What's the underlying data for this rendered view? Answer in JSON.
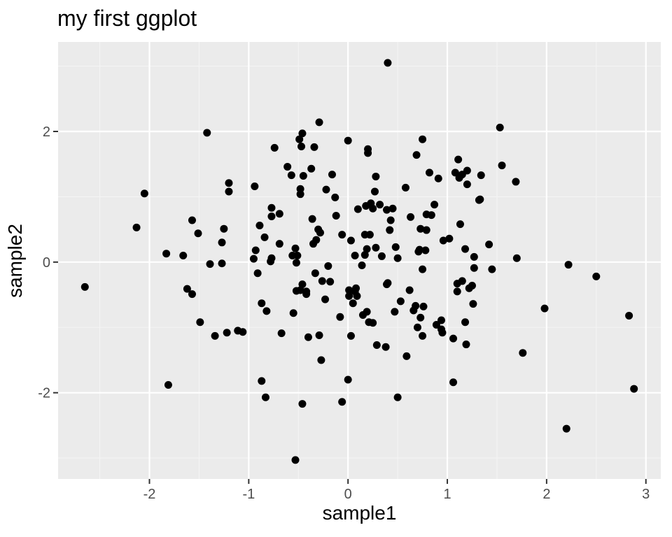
{
  "colors": {
    "panel_background": "#EBEBEB",
    "grid_major": "#FFFFFF",
    "grid_minor": "#F4F4F4",
    "point": "#000000",
    "tick_text": "#4D4D4D",
    "tick_mark": "#333333"
  },
  "chart_data": {
    "type": "scatter",
    "title": "my first ggplot",
    "xlabel": "sample1",
    "ylabel": "sample2",
    "xlim": [
      -2.92,
      3.15
    ],
    "ylim": [
      -3.32,
      3.37
    ],
    "xticks": [
      -2,
      -1,
      0,
      1,
      2,
      3
    ],
    "yticks": [
      -2,
      0,
      2
    ],
    "xtick_labels": [
      "-2",
      "-1",
      "0",
      "1",
      "2",
      "3"
    ],
    "ytick_labels": [
      "-2",
      "0",
      "2"
    ],
    "grid": true,
    "legend": "none",
    "points": [
      [
        -2.65,
        -0.38
      ],
      [
        -2.13,
        0.53
      ],
      [
        -2.05,
        1.05
      ],
      [
        -1.83,
        0.13
      ],
      [
        -1.81,
        -1.88
      ],
      [
        -1.66,
        0.1
      ],
      [
        -1.62,
        -0.41
      ],
      [
        -1.57,
        -0.49
      ],
      [
        -1.57,
        0.64
      ],
      [
        -1.51,
        0.44
      ],
      [
        -1.49,
        -0.92
      ],
      [
        -1.42,
        1.98
      ],
      [
        -1.39,
        -0.03
      ],
      [
        -1.34,
        -1.13
      ],
      [
        -1.27,
        0.3
      ],
      [
        -1.27,
        -0.02
      ],
      [
        -1.25,
        0.51
      ],
      [
        -1.22,
        -1.08
      ],
      [
        -1.2,
        1.21
      ],
      [
        -1.2,
        1.08
      ],
      [
        -1.11,
        -1.05
      ],
      [
        -1.06,
        -1.07
      ],
      [
        -0.95,
        0.05
      ],
      [
        -0.94,
        1.16
      ],
      [
        -0.93,
        0.18
      ],
      [
        -0.91,
        -0.17
      ],
      [
        -0.89,
        0.56
      ],
      [
        -0.87,
        -0.63
      ],
      [
        -0.87,
        -1.82
      ],
      [
        -0.84,
        0.38
      ],
      [
        -0.83,
        -2.07
      ],
      [
        -0.82,
        -0.75
      ],
      [
        -0.78,
        0.01
      ],
      [
        -0.77,
        0.06
      ],
      [
        -0.77,
        0.83
      ],
      [
        -0.77,
        0.7
      ],
      [
        -0.74,
        1.75
      ],
      [
        -0.69,
        0.74
      ],
      [
        -0.69,
        0.28
      ],
      [
        -0.67,
        -1.09
      ],
      [
        -0.61,
        1.46
      ],
      [
        -0.57,
        1.33
      ],
      [
        -0.56,
        0.1
      ],
      [
        -0.55,
        -0.78
      ],
      [
        -0.53,
        -3.03
      ],
      [
        -0.53,
        0.21
      ],
      [
        -0.52,
        -0.44
      ],
      [
        -0.52,
        -0.01
      ],
      [
        -0.51,
        0.1
      ],
      [
        -0.49,
        1.88
      ],
      [
        -0.48,
        -0.43
      ],
      [
        -0.48,
        1.12
      ],
      [
        -0.48,
        1.04
      ],
      [
        -0.47,
        1.77
      ],
      [
        -0.46,
        1.97
      ],
      [
        -0.46,
        -2.17
      ],
      [
        -0.46,
        -0.34
      ],
      [
        -0.45,
        1.32
      ],
      [
        -0.42,
        -0.45
      ],
      [
        -0.42,
        -0.49
      ],
      [
        -0.4,
        -1.15
      ],
      [
        -0.37,
        1.43
      ],
      [
        -0.36,
        0.66
      ],
      [
        -0.35,
        0.28
      ],
      [
        -0.34,
        1.76
      ],
      [
        -0.33,
        -0.17
      ],
      [
        -0.32,
        0.34
      ],
      [
        -0.3,
        0.5
      ],
      [
        -0.29,
        -1.12
      ],
      [
        -0.29,
        2.14
      ],
      [
        -0.28,
        0.45
      ],
      [
        -0.27,
        -1.5
      ],
      [
        -0.26,
        -0.29
      ],
      [
        -0.23,
        -0.57
      ],
      [
        -0.22,
        1.11
      ],
      [
        -0.2,
        -0.06
      ],
      [
        -0.18,
        -0.3
      ],
      [
        -0.16,
        1.34
      ],
      [
        -0.13,
        0.99
      ],
      [
        -0.12,
        0.71
      ],
      [
        -0.08,
        -0.84
      ],
      [
        -0.06,
        0.42
      ],
      [
        -0.06,
        -2.14
      ],
      [
        0.0,
        -1.8
      ],
      [
        0.0,
        1.86
      ],
      [
        0.01,
        -0.43
      ],
      [
        0.01,
        -0.52
      ],
      [
        0.03,
        -1.13
      ],
      [
        0.03,
        0.33
      ],
      [
        0.05,
        -0.63
      ],
      [
        0.07,
        -0.45
      ],
      [
        0.07,
        0.1
      ],
      [
        0.08,
        -0.4
      ],
      [
        0.09,
        -0.52
      ],
      [
        0.1,
        0.81
      ],
      [
        0.14,
        -0.05
      ],
      [
        0.15,
        -0.81
      ],
      [
        0.17,
        0.42
      ],
      [
        0.17,
        0.11
      ],
      [
        0.18,
        0.86
      ],
      [
        0.19,
        -0.76
      ],
      [
        0.19,
        0.2
      ],
      [
        0.2,
        1.73
      ],
      [
        0.2,
        1.67
      ],
      [
        0.21,
        -0.92
      ],
      [
        0.22,
        0.42
      ],
      [
        0.23,
        0.9
      ],
      [
        0.25,
        -0.93
      ],
      [
        0.25,
        0.82
      ],
      [
        0.27,
        1.08
      ],
      [
        0.28,
        1.31
      ],
      [
        0.28,
        0.22
      ],
      [
        0.29,
        -1.27
      ],
      [
        0.32,
        0.88
      ],
      [
        0.34,
        0.09
      ],
      [
        0.38,
        -1.3
      ],
      [
        0.39,
        0.8
      ],
      [
        0.39,
        -0.34
      ],
      [
        0.4,
        3.05
      ],
      [
        0.4,
        -0.32
      ],
      [
        0.42,
        0.49
      ],
      [
        0.43,
        0.64
      ],
      [
        0.45,
        0.82
      ],
      [
        0.47,
        -0.76
      ],
      [
        0.48,
        0.23
      ],
      [
        0.5,
        -2.07
      ],
      [
        0.5,
        0.06
      ],
      [
        0.53,
        -0.6
      ],
      [
        0.58,
        1.14
      ],
      [
        0.59,
        -1.44
      ],
      [
        0.62,
        -0.43
      ],
      [
        0.63,
        0.69
      ],
      [
        0.66,
        -0.74
      ],
      [
        0.68,
        -0.67
      ],
      [
        0.69,
        1.64
      ],
      [
        0.7,
        -1.0
      ],
      [
        0.71,
        0.16
      ],
      [
        0.72,
        0.19
      ],
      [
        0.73,
        -0.85
      ],
      [
        0.73,
        0.51
      ],
      [
        0.75,
        1.88
      ],
      [
        0.75,
        -0.11
      ],
      [
        0.75,
        -1.13
      ],
      [
        0.76,
        -0.68
      ],
      [
        0.78,
        0.18
      ],
      [
        0.79,
        0.49
      ],
      [
        0.79,
        0.73
      ],
      [
        0.82,
        1.37
      ],
      [
        0.84,
        0.72
      ],
      [
        0.87,
        0.88
      ],
      [
        0.89,
        -0.96
      ],
      [
        0.91,
        1.28
      ],
      [
        0.94,
        -0.89
      ],
      [
        0.94,
        -1.03
      ],
      [
        0.95,
        -1.08
      ],
      [
        0.96,
        0.33
      ],
      [
        1.02,
        0.36
      ],
      [
        1.06,
        -1.17
      ],
      [
        1.06,
        -1.84
      ],
      [
        1.08,
        1.37
      ],
      [
        1.1,
        -0.45
      ],
      [
        1.1,
        -0.33
      ],
      [
        1.11,
        1.57
      ],
      [
        1.12,
        1.29
      ],
      [
        1.13,
        0.58
      ],
      [
        1.15,
        -0.29
      ],
      [
        1.15,
        1.34
      ],
      [
        1.18,
        0.2
      ],
      [
        1.18,
        -0.92
      ],
      [
        1.19,
        -1.26
      ],
      [
        1.2,
        1.19
      ],
      [
        1.2,
        1.4
      ],
      [
        1.22,
        -0.4
      ],
      [
        1.25,
        -0.36
      ],
      [
        1.26,
        -0.64
      ],
      [
        1.27,
        -0.09
      ],
      [
        1.27,
        0.08
      ],
      [
        1.32,
        0.95
      ],
      [
        1.33,
        0.96
      ],
      [
        1.34,
        1.33
      ],
      [
        1.42,
        0.27
      ],
      [
        1.45,
        -0.11
      ],
      [
        1.53,
        2.06
      ],
      [
        1.55,
        1.48
      ],
      [
        1.69,
        1.23
      ],
      [
        1.7,
        0.06
      ],
      [
        1.76,
        -1.39
      ],
      [
        1.98,
        -0.71
      ],
      [
        2.2,
        -2.55
      ],
      [
        2.22,
        -0.04
      ],
      [
        2.5,
        -0.22
      ],
      [
        2.83,
        -0.82
      ],
      [
        2.88,
        -1.94
      ]
    ]
  }
}
